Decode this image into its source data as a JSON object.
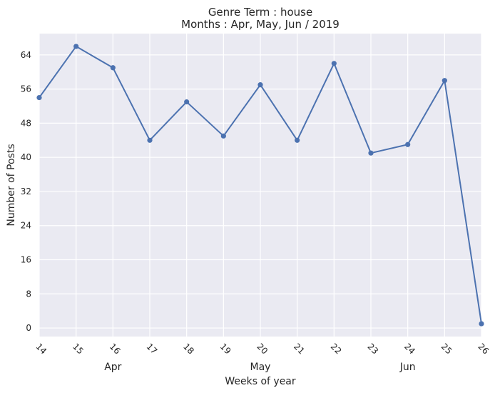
{
  "chart_data": {
    "type": "line",
    "title": "Genre Term : house",
    "subtitle": "Months : Apr, May, Jun / 2019",
    "xlabel": "Weeks of year",
    "ylabel": "Number of Posts",
    "x": [
      14,
      15,
      16,
      17,
      18,
      19,
      20,
      21,
      22,
      23,
      24,
      25,
      26
    ],
    "x_tick_labels": [
      "14",
      "15",
      "16",
      "17",
      "18",
      "19",
      "20",
      "21",
      "22",
      "23",
      "24",
      "25",
      "26"
    ],
    "series": [
      {
        "values": [
          54,
          66,
          61,
          44,
          53,
          45,
          57,
          44,
          62,
          41,
          43,
          58,
          1
        ]
      }
    ],
    "xlim": [
      14,
      26
    ],
    "ylim": [
      -2,
      69
    ],
    "y_ticks": [
      0,
      8,
      16,
      24,
      32,
      40,
      48,
      56,
      64
    ],
    "month_labels": [
      {
        "label": "Apr",
        "week": 16
      },
      {
        "label": "May",
        "week": 20
      },
      {
        "label": "Jun",
        "week": 24
      }
    ],
    "grid": true,
    "colors": {
      "background": "#eaeaf2",
      "grid": "#ffffff",
      "line": "#4c72b0",
      "text": "#262626"
    }
  }
}
